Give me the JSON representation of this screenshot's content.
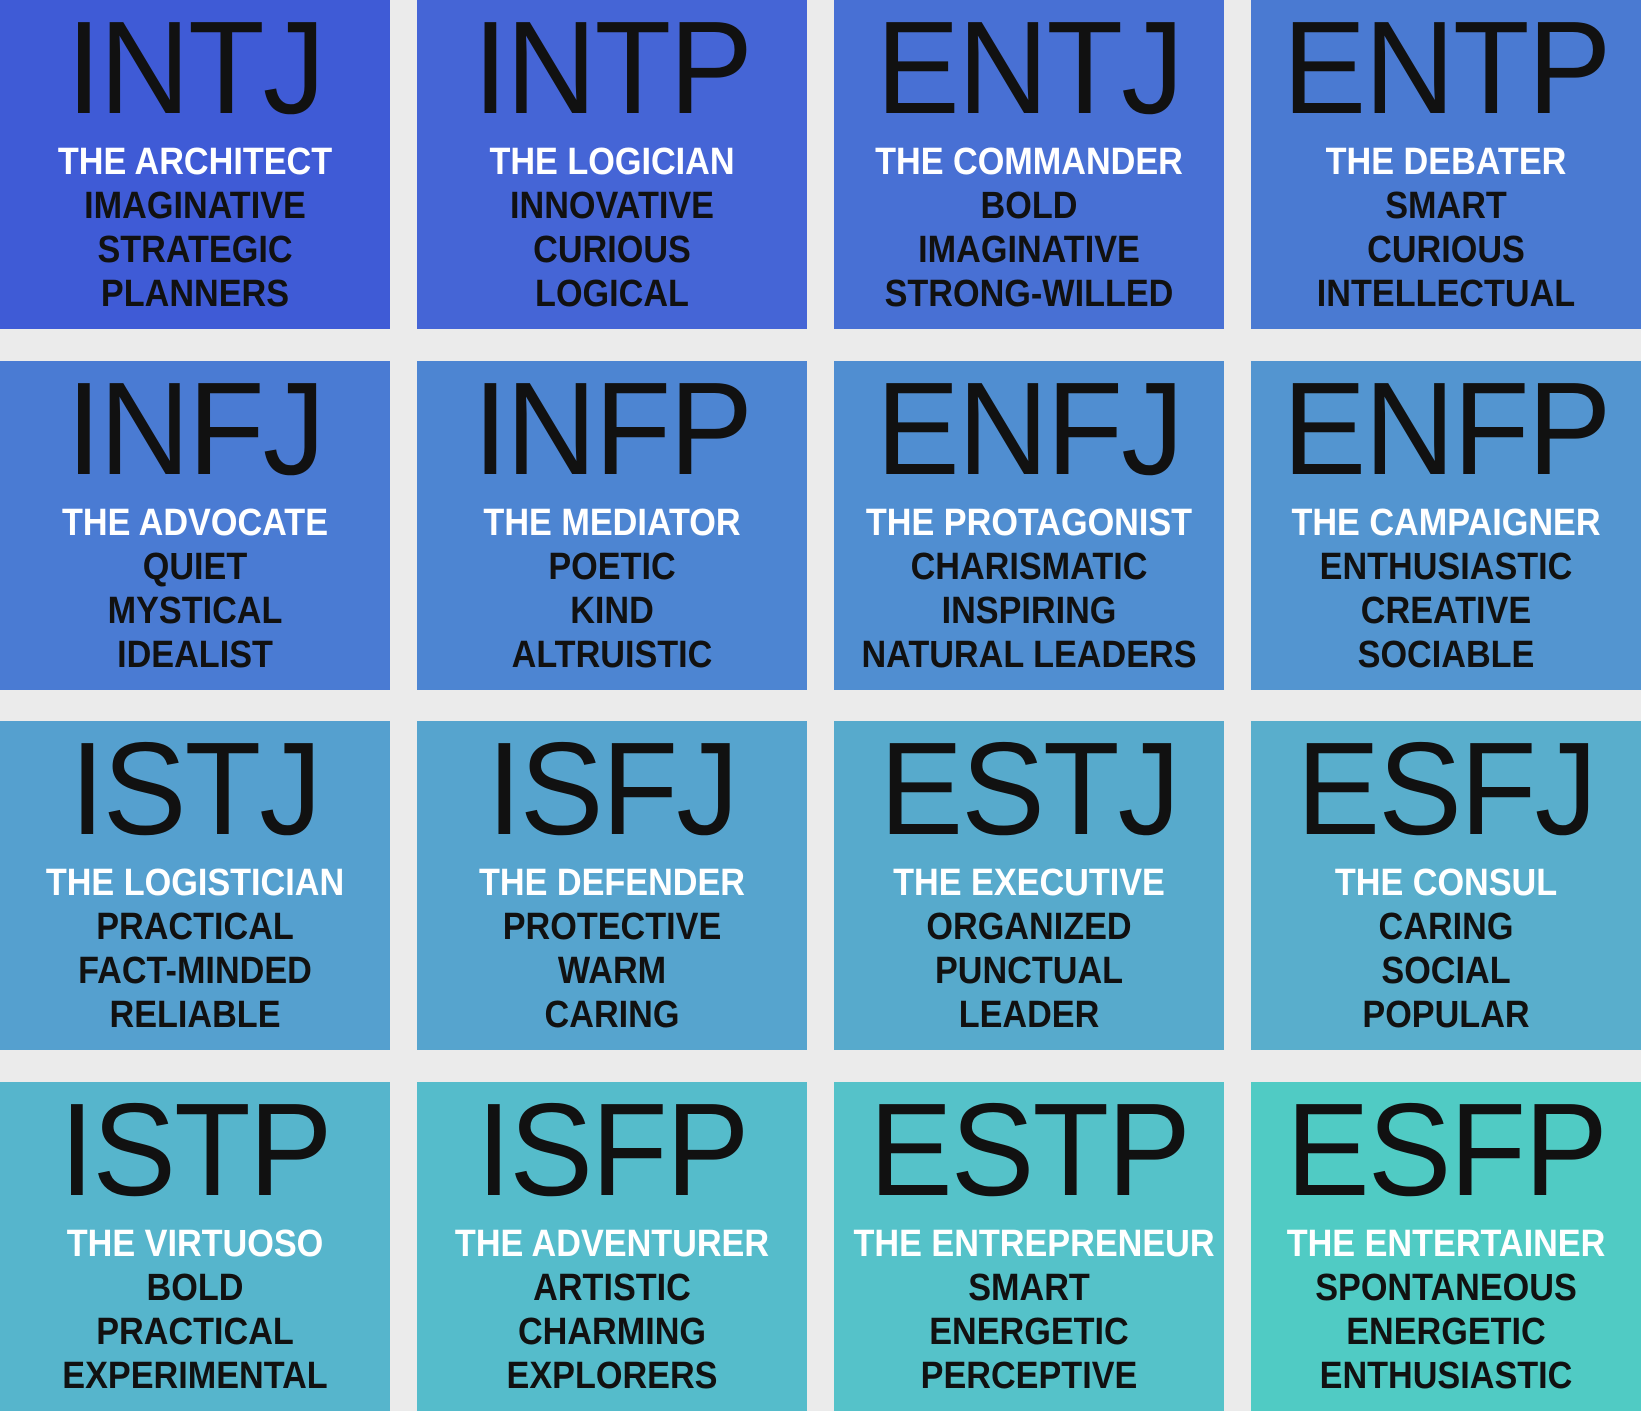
{
  "cells": [
    {
      "code": "INTJ",
      "title": "THE ARCHITECT",
      "traits": [
        "IMAGINATIVE",
        "STRATEGIC",
        "PLANNERS"
      ],
      "color": "#3f5bd6"
    },
    {
      "code": "INTP",
      "title": "THE LOGICIAN",
      "traits": [
        "INNOVATIVE",
        "CURIOUS",
        "LOGICAL"
      ],
      "color": "#4565d6"
    },
    {
      "code": "ENTJ",
      "title": "THE COMMANDER",
      "traits": [
        "BOLD",
        "IMAGINATIVE",
        "STRONG-WILLED"
      ],
      "color": "#4870d4"
    },
    {
      "code": "ENTP",
      "title": "THE DEBATER",
      "traits": [
        "SMART",
        "CURIOUS",
        "INTELLECTUAL"
      ],
      "color": "#4a7ad2"
    },
    {
      "code": "INFJ",
      "title": "THE ADVOCATE",
      "traits": [
        "QUIET",
        "MYSTICAL",
        "IDEALIST"
      ],
      "color": "#4a7bd3"
    },
    {
      "code": "INFP",
      "title": "THE MEDIATOR",
      "traits": [
        "POETIC",
        "KIND",
        "ALTRUISTIC"
      ],
      "color": "#4d85d2"
    },
    {
      "code": "ENFJ",
      "title": "THE PROTAGONIST",
      "traits": [
        "CHARISMATIC",
        "INSPIRING",
        "NATURAL LEADERS"
      ],
      "color": "#508ed1"
    },
    {
      "code": "ENFP",
      "title": "THE CAMPAIGNER",
      "traits": [
        "ENTHUSIASTIC",
        "CREATIVE",
        "SOCIABLE"
      ],
      "color": "#5395d0"
    },
    {
      "code": "ISTJ",
      "title": "THE LOGISTICIAN",
      "traits": [
        "PRACTICAL",
        "FACT-MINDED",
        "RELIABLE"
      ],
      "color": "#55a0cf"
    },
    {
      "code": "ISFJ",
      "title": "THE DEFENDER",
      "traits": [
        "PROTECTIVE",
        "WARM",
        "CARING"
      ],
      "color": "#56a4ce"
    },
    {
      "code": "ESTJ",
      "title": "THE EXECUTIVE",
      "traits": [
        "ORGANIZED",
        "PUNCTUAL",
        "LEADER"
      ],
      "color": "#57aacc"
    },
    {
      "code": "ESFJ",
      "title": "THE CONSUL",
      "traits": [
        "CARING",
        "SOCIAL",
        "POPULAR"
      ],
      "color": "#59aecc"
    },
    {
      "code": "ISTP",
      "title": "THE VIRTUOSO",
      "traits": [
        "BOLD",
        "PRACTICAL",
        "EXPERIMENTAL"
      ],
      "color": "#56b5cc"
    },
    {
      "code": "ISFP",
      "title": "THE ADVENTURER",
      "traits": [
        "ARTISTIC",
        "CHARMING",
        "EXPLORERS"
      ],
      "color": "#55bccb"
    },
    {
      "code": "ESTP",
      "title": "THE ENTREPRENEUR",
      "traits": [
        "SMART",
        "ENERGETIC",
        "PERCEPTIVE"
      ],
      "color": "#55c2c9"
    },
    {
      "code": "ESFP",
      "title": "THE ENTERTAINER",
      "traits": [
        "SPONTANEOUS",
        "ENERGETIC",
        "ENTHUSIASTIC"
      ],
      "color": "#50cbc4"
    }
  ]
}
